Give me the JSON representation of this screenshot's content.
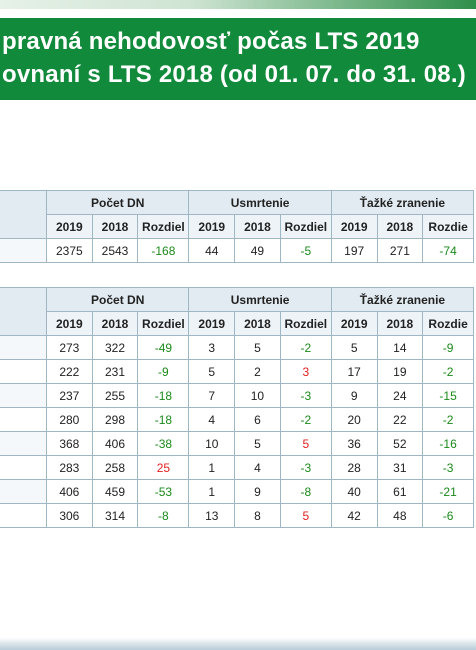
{
  "title": {
    "line1": "pravná nehodovosť počas LTS 2019",
    "line2": "ovnaní s LTS 2018 (od 01. 07. do 31. 08.)"
  },
  "group_headers": [
    "Počet DN",
    "Usmrtenie",
    "Ťažké zranenie"
  ],
  "sub_headers": [
    "2019",
    "2018",
    "Rozdiel",
    "2019",
    "2018",
    "Rozdiel",
    "2019",
    "2018",
    "Rozdiel"
  ],
  "sub_headers_visible": [
    "2019",
    "2018",
    "Rozdiel",
    "2019",
    "2018",
    "Rozdiel",
    "2019",
    "2018",
    "Rozdie"
  ],
  "table1": {
    "rows": [
      [
        "2375",
        "2543",
        "-168",
        "44",
        "49",
        "-5",
        "197",
        "271",
        "-74"
      ]
    ]
  },
  "table2": {
    "rows": [
      [
        "273",
        "322",
        "-49",
        "3",
        "5",
        "-2",
        "5",
        "14",
        "-9"
      ],
      [
        "222",
        "231",
        "-9",
        "5",
        "2",
        "3",
        "17",
        "19",
        "-2"
      ],
      [
        "237",
        "255",
        "-18",
        "7",
        "10",
        "-3",
        "9",
        "24",
        "-15"
      ],
      [
        "280",
        "298",
        "-18",
        "4",
        "6",
        "-2",
        "20",
        "22",
        "-2"
      ],
      [
        "368",
        "406",
        "-38",
        "10",
        "5",
        "5",
        "36",
        "52",
        "-16"
      ],
      [
        "283",
        "258",
        "25",
        "1",
        "4",
        "-3",
        "28",
        "31",
        "-3"
      ],
      [
        "406",
        "459",
        "-53",
        "1",
        "9",
        "-8",
        "40",
        "61",
        "-21"
      ],
      [
        "306",
        "314",
        "-8",
        "13",
        "8",
        "5",
        "42",
        "48",
        "-6"
      ]
    ]
  },
  "colors": {
    "title_bg": "#128a3c",
    "negative_diff": "#1b8a1b",
    "positive_diff": "#e02020",
    "header_bg": "#e1ebf1"
  }
}
